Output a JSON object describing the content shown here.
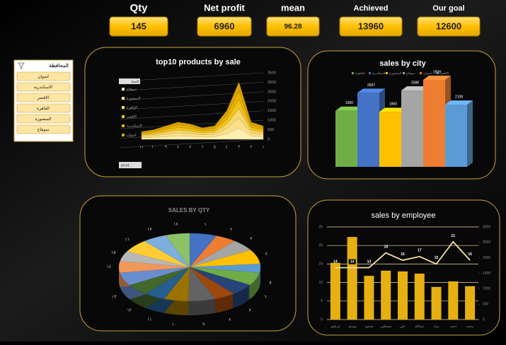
{
  "kpis": [
    {
      "label": "Qty",
      "value": 145
    },
    {
      "label": "Net profit",
      "value": 6960
    },
    {
      "label": "mean",
      "value": 96.28
    },
    {
      "label": "Achieved",
      "value": 13960
    },
    {
      "label": "Our goal",
      "value": 12600
    }
  ],
  "slicer": {
    "title": "المحافظة",
    "items": [
      "اسوان",
      "الاسكندرية",
      "الاقصر",
      "القاهرة",
      "المنصورة",
      "سوهاج"
    ]
  },
  "chart_data": [
    {
      "type": "area",
      "title": "top10 products by sale",
      "legend_title": "المحا",
      "field_button": "prod...",
      "categories": [
        "١١",
        "١٠",
        "٩",
        "٨",
        "٧",
        "٦",
        "٥",
        "٤",
        "٣",
        "٢",
        "١"
      ],
      "series": [
        {
          "name": "سوهاج",
          "color": "#fff0b0",
          "values": [
            80,
            100,
            140,
            180,
            160,
            120,
            140,
            300,
            600,
            180,
            140
          ]
        },
        {
          "name": "المنصورة",
          "color": "#ffe08a",
          "values": [
            70,
            90,
            120,
            160,
            140,
            110,
            120,
            260,
            520,
            160,
            120
          ]
        },
        {
          "name": "القاهرة",
          "color": "#f5d76e",
          "values": [
            70,
            80,
            120,
            150,
            130,
            100,
            120,
            250,
            500,
            150,
            120
          ]
        },
        {
          "name": "الاقصر",
          "color": "#f0c419",
          "values": [
            60,
            80,
            110,
            140,
            130,
            100,
            110,
            240,
            480,
            140,
            110
          ]
        },
        {
          "name": "الاسكندرية",
          "color": "#e8b000",
          "values": [
            60,
            80,
            110,
            140,
            130,
            90,
            110,
            230,
            470,
            140,
            110
          ]
        },
        {
          "name": "اسوان",
          "color": "#d9a400",
          "values": [
            60,
            70,
            100,
            130,
            110,
            80,
            100,
            220,
            430,
            130,
            100
          ]
        }
      ],
      "ylim": [
        0,
        3500
      ],
      "yticks": [
        0,
        500,
        1000,
        1500,
        2000,
        2500,
        3000,
        3500
      ],
      "grid": true
    },
    {
      "type": "bar3d",
      "title": "sales by city",
      "categories": [
        "القاهرة",
        "الاسكندرية",
        "المنصورة",
        "سوهاج",
        "اسوان",
        "الاقصر"
      ],
      "colors": [
        "#70ad47",
        "#4472c4",
        "#ffc000",
        "#a5a5a5",
        "#ed7d31",
        "#5b9bd5"
      ],
      "values": [
        1900,
        2507,
        1860,
        2588,
        2949,
        2108
      ]
    },
    {
      "type": "pie3d",
      "title": "SALES BY QTY",
      "categories": [
        "١",
        "٢",
        "٣",
        "٤",
        "٥",
        "٦",
        "٧",
        "٨",
        "٩",
        "١٠",
        "١١",
        "١٢",
        "١٣",
        "١٤",
        "١٥",
        "١٦",
        "١٧",
        "١٨"
      ],
      "values": [
        9,
        7,
        8,
        10,
        6,
        9,
        8,
        7,
        9,
        8,
        7,
        8,
        9,
        8,
        7,
        9,
        8,
        8
      ],
      "colors": [
        "#4472c4",
        "#ed7d31",
        "#a5a5a5",
        "#ffc000",
        "#5b9bd5",
        "#70ad47",
        "#264478",
        "#9e480e",
        "#636363",
        "#997300",
        "#255e91",
        "#43682b",
        "#698ed0",
        "#f1975a",
        "#b7b7b7",
        "#ffcd33",
        "#7cafdd",
        "#8cc168"
      ]
    },
    {
      "type": "combo",
      "title": "sales by employee",
      "categories": [
        "ابراهيم",
        "يوسف",
        "محمود",
        "مصطفى",
        "علي",
        "عبدالله",
        "مراد",
        "احمد",
        "محمد"
      ],
      "series": [
        {
          "kind": "bar",
          "color": "#e6b012",
          "values": [
            15.3,
            22.3,
            11.8,
            13.2,
            13,
            12.4,
            8.8,
            10.3,
            9
          ]
        },
        {
          "kind": "line",
          "color": "#f3dfa6",
          "values": [
            14,
            14,
            14,
            18,
            16,
            17,
            15,
            21,
            16
          ]
        }
      ],
      "ylim": [
        0,
        25
      ],
      "yticks": [
        0,
        5,
        10,
        15,
        20,
        25
      ],
      "y2lim": [
        0,
        3000
      ],
      "y2ticks": [
        0,
        500,
        1000,
        1500,
        2000,
        2500,
        3000
      ],
      "grid": true
    }
  ]
}
